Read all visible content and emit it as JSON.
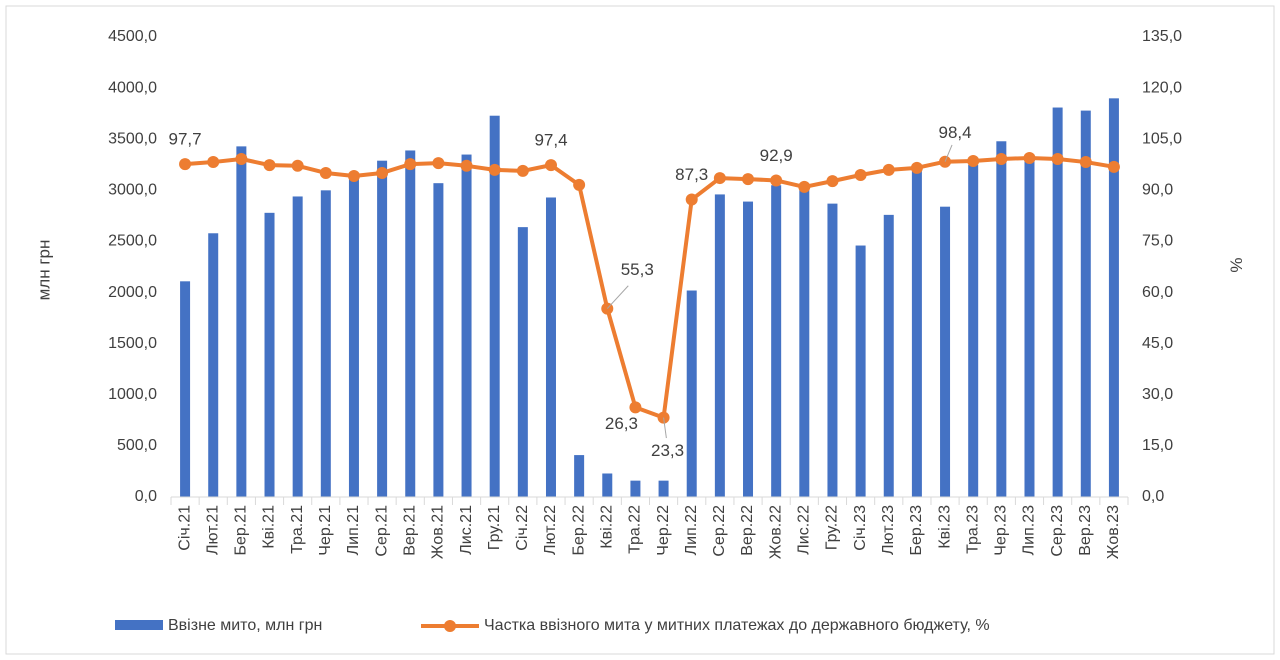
{
  "chart_data": {
    "type": "bar",
    "categories": [
      "Січ.21",
      "Лют.21",
      "Бер.21",
      "Кві.21",
      "Тра.21",
      "Чер.21",
      "Лип.21",
      "Сер.21",
      "Вер.21",
      "Жов.21",
      "Лис.21",
      "Гру.21",
      "Січ.22",
      "Лют.22",
      "Бер.22",
      "Кві.22",
      "Тра.22",
      "Чер.22",
      "Лип.22",
      "Сер.22",
      "Вер.22",
      "Жов.22",
      "Лис.22",
      "Гру.22",
      "Січ.23",
      "Лют.23",
      "Бер.23",
      "Кві.23",
      "Тра.23",
      "Чер.23",
      "Лип.23",
      "Сер.23",
      "Вер.23",
      "Жов.23"
    ],
    "ylabel": "млн грн",
    "y2label": "%",
    "ylim": [
      0,
      4500
    ],
    "yticks": [
      {
        "value": 0,
        "label": "0,0"
      },
      {
        "value": 500,
        "label": "500,0"
      },
      {
        "value": 1000,
        "label": "1000,0"
      },
      {
        "value": 1500,
        "label": "1500,0"
      },
      {
        "value": 2000,
        "label": "2000,0"
      },
      {
        "value": 2500,
        "label": "2500,0"
      },
      {
        "value": 3000,
        "label": "3000,0"
      },
      {
        "value": 3500,
        "label": "3500,0"
      },
      {
        "value": 4000,
        "label": "4000,0"
      },
      {
        "value": 4500,
        "label": "4500,0"
      }
    ],
    "y2lim": [
      0,
      135
    ],
    "y2ticks": [
      {
        "value": 0,
        "label": "0,0"
      },
      {
        "value": 15,
        "label": "15,0"
      },
      {
        "value": 30,
        "label": "30,0"
      },
      {
        "value": 45,
        "label": "45,0"
      },
      {
        "value": 60,
        "label": "60,0"
      },
      {
        "value": 75,
        "label": "75,0"
      },
      {
        "value": 90,
        "label": "90,0"
      },
      {
        "value": 105,
        "label": "105,0"
      },
      {
        "value": 120,
        "label": "120,0"
      },
      {
        "value": 135,
        "label": "135,0"
      }
    ],
    "legend": "bottom",
    "series": [
      {
        "name": "Ввізне мито, млн грн",
        "type": "bar",
        "color": "#4472c4",
        "values": [
          2110,
          2580,
          3430,
          2780,
          2940,
          3000,
          3130,
          3290,
          3390,
          3070,
          3350,
          3730,
          2640,
          2930,
          410,
          230,
          160,
          160,
          2020,
          2960,
          2890,
          3050,
          3020,
          2870,
          2460,
          2760,
          3200,
          2840,
          3250,
          3480,
          3300,
          3810,
          3780,
          3900
        ]
      },
      {
        "name": "Частка ввізного мита у митних платежах до державного бюджету, %",
        "type": "line",
        "axis": "y2",
        "color": "#ed7d31",
        "values": [
          97.7,
          98.3,
          99.2,
          97.4,
          97.2,
          95.1,
          94.2,
          95.1,
          97.7,
          98.0,
          97.2,
          96.0,
          95.7,
          97.4,
          91.6,
          55.3,
          26.3,
          23.3,
          87.3,
          93.6,
          93.3,
          92.9,
          91.0,
          92.7,
          94.5,
          96.0,
          96.6,
          98.4,
          98.6,
          99.2,
          99.5,
          99.2,
          98.3,
          96.9
        ],
        "value_labels": [
          "97,7",
          null,
          null,
          null,
          null,
          null,
          null,
          null,
          null,
          null,
          null,
          null,
          null,
          "97,4",
          null,
          "55,3",
          "26,3",
          "23,3",
          "87,3",
          null,
          null,
          "92,9",
          null,
          null,
          null,
          null,
          null,
          "98,4",
          null,
          null,
          null,
          null,
          null,
          null
        ]
      }
    ]
  }
}
